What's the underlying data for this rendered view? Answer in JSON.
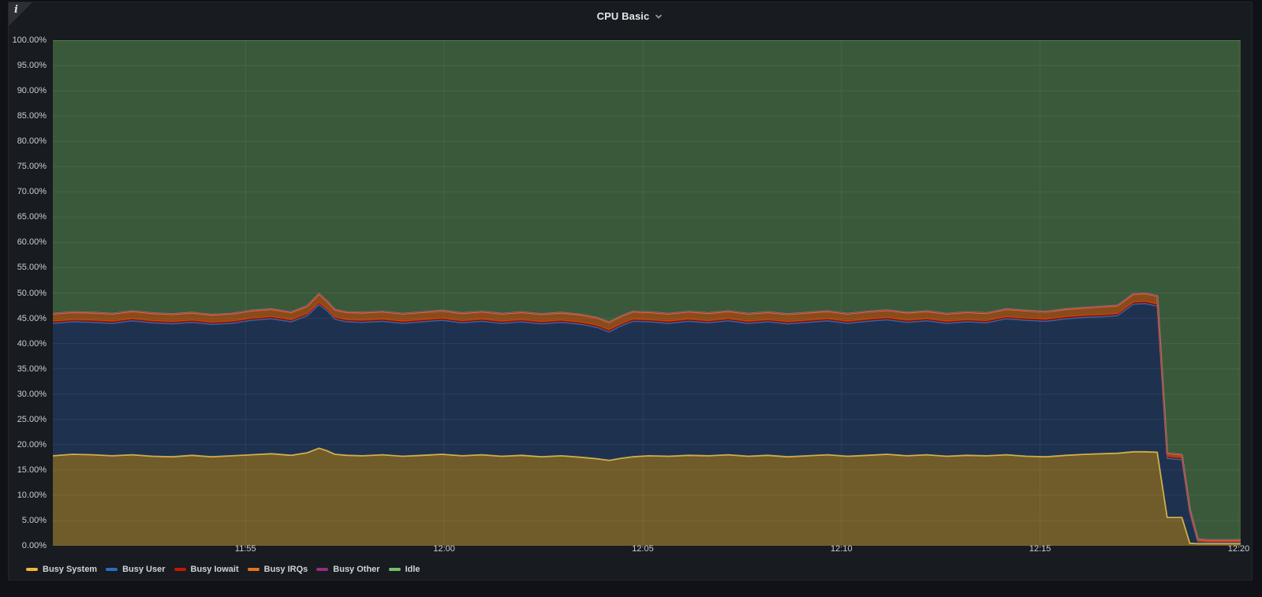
{
  "panel": {
    "title": "CPU Basic",
    "info_icon": "i"
  },
  "chart_data": {
    "type": "area",
    "stacked": true,
    "unit": "percent",
    "title": "CPU Basic",
    "grid": true,
    "legend_position": "bottom",
    "ylim": [
      0,
      100
    ],
    "x_domain": [
      0,
      29.9
    ],
    "x_ticks": [
      {
        "t": 4.85,
        "label": "11:55"
      },
      {
        "t": 9.85,
        "label": "12:00"
      },
      {
        "t": 14.85,
        "label": "12:05"
      },
      {
        "t": 19.85,
        "label": "12:10"
      },
      {
        "t": 24.85,
        "label": "12:15"
      },
      {
        "t": 29.85,
        "label": "12:20"
      }
    ],
    "y_ticks": [
      {
        "v": 100,
        "label": "100.00%"
      },
      {
        "v": 95,
        "label": "95.00%"
      },
      {
        "v": 90,
        "label": "90.00%"
      },
      {
        "v": 85,
        "label": "85.00%"
      },
      {
        "v": 80,
        "label": "80.00%"
      },
      {
        "v": 75,
        "label": "75.00%"
      },
      {
        "v": 70,
        "label": "70.00%"
      },
      {
        "v": 65,
        "label": "65.00%"
      },
      {
        "v": 60,
        "label": "60.00%"
      },
      {
        "v": 55,
        "label": "55.00%"
      },
      {
        "v": 50,
        "label": "50.00%"
      },
      {
        "v": 45,
        "label": "45.00%"
      },
      {
        "v": 40,
        "label": "40.00%"
      },
      {
        "v": 35,
        "label": "35.00%"
      },
      {
        "v": 30,
        "label": "30.00%"
      },
      {
        "v": 25,
        "label": "25.00%"
      },
      {
        "v": 20,
        "label": "20.00%"
      },
      {
        "v": 15,
        "label": "15.00%"
      },
      {
        "v": 10,
        "label": "10.00%"
      },
      {
        "v": 5,
        "label": "5.00%"
      },
      {
        "v": 0,
        "label": "0.00%"
      }
    ],
    "x_minutes": [
      0,
      0.5,
      1,
      1.5,
      2,
      2.5,
      3,
      3.5,
      4,
      4.5,
      5,
      5.5,
      6,
      6.4,
      6.7,
      6.9,
      7.1,
      7.4,
      7.8,
      8.3,
      8.8,
      9.3,
      9.8,
      10.3,
      10.8,
      11.3,
      11.8,
      12.3,
      12.8,
      13.3,
      13.7,
      14.0,
      14.3,
      14.6,
      15.0,
      15.5,
      16.0,
      16.5,
      17.0,
      17.5,
      18.0,
      18.5,
      19.0,
      19.5,
      20.0,
      20.5,
      21.0,
      21.5,
      22.0,
      22.5,
      23.0,
      23.5,
      24.0,
      24.5,
      25.0,
      25.5,
      26.0,
      26.4,
      26.8,
      27.2,
      27.5,
      27.8,
      28.05,
      28.42,
      28.62,
      28.82,
      29.1,
      29.5,
      29.9
    ],
    "series": [
      {
        "name": "Busy System",
        "color": "#EAB839",
        "fill_opacity": 0.42,
        "line_width": 1.8,
        "values": [
          17.8,
          18.1,
          18.0,
          17.8,
          18.0,
          17.7,
          17.6,
          17.9,
          17.6,
          17.8,
          18.0,
          18.2,
          17.9,
          18.4,
          19.3,
          18.8,
          18.1,
          17.9,
          17.8,
          18.0,
          17.7,
          17.9,
          18.1,
          17.8,
          18.0,
          17.7,
          17.9,
          17.6,
          17.8,
          17.5,
          17.2,
          16.9,
          17.3,
          17.6,
          17.8,
          17.7,
          17.9,
          17.8,
          18.0,
          17.7,
          17.9,
          17.6,
          17.8,
          18.0,
          17.7,
          17.9,
          18.1,
          17.8,
          18.0,
          17.7,
          17.9,
          17.8,
          18.0,
          17.7,
          17.6,
          17.9,
          18.1,
          18.2,
          18.3,
          18.6,
          18.6,
          18.5,
          5.6,
          5.6,
          0.5,
          0.4,
          0.4,
          0.4,
          0.4
        ]
      },
      {
        "name": "Busy User",
        "color": "#2E6BC0",
        "fill_opacity": 0.3,
        "line_width": 1.5,
        "values": [
          26.2,
          26.2,
          26.2,
          26.2,
          26.5,
          26.4,
          26.3,
          26.3,
          26.2,
          26.2,
          26.6,
          26.7,
          26.4,
          27.1,
          28.4,
          27.7,
          26.7,
          26.4,
          26.4,
          26.4,
          26.3,
          26.4,
          26.5,
          26.3,
          26.4,
          26.3,
          26.4,
          26.3,
          26.4,
          26.3,
          26.0,
          25.4,
          26.2,
          26.8,
          26.5,
          26.3,
          26.5,
          26.3,
          26.5,
          26.3,
          26.4,
          26.3,
          26.4,
          26.5,
          26.3,
          26.5,
          26.6,
          26.4,
          26.5,
          26.3,
          26.4,
          26.3,
          26.9,
          26.9,
          26.8,
          27.0,
          27.1,
          27.1,
          27.2,
          29.2,
          29.3,
          28.9,
          11.7,
          11.4,
          6.0,
          0.4,
          0.3,
          0.3,
          0.3
        ]
      },
      {
        "name": "Busy Iowait",
        "color": "#BF1B00",
        "fill_opacity": 0.4,
        "line_width": 1.5,
        "values": [
          0.4,
          0.4,
          0.4,
          0.4,
          0.4,
          0.4,
          0.4,
          0.4,
          0.4,
          0.4,
          0.4,
          0.4,
          0.4,
          0.4,
          0.4,
          0.4,
          0.4,
          0.4,
          0.4,
          0.4,
          0.4,
          0.4,
          0.4,
          0.4,
          0.4,
          0.4,
          0.4,
          0.4,
          0.4,
          0.4,
          0.4,
          0.4,
          0.4,
          0.4,
          0.4,
          0.4,
          0.4,
          0.4,
          0.4,
          0.4,
          0.4,
          0.4,
          0.4,
          0.4,
          0.4,
          0.4,
          0.4,
          0.4,
          0.4,
          0.4,
          0.4,
          0.4,
          0.4,
          0.4,
          0.4,
          0.4,
          0.4,
          0.4,
          0.4,
          0.4,
          0.4,
          0.4,
          0.4,
          0.4,
          0.3,
          0.2,
          0.1,
          0.1,
          0.1
        ]
      },
      {
        "name": "Busy IRQs",
        "color": "#E8731A",
        "fill_opacity": 0.55,
        "line_width": 2.2,
        "values": [
          1.5,
          1.5,
          1.5,
          1.5,
          1.5,
          1.5,
          1.5,
          1.5,
          1.5,
          1.5,
          1.5,
          1.5,
          1.5,
          1.5,
          1.7,
          1.5,
          1.5,
          1.5,
          1.5,
          1.5,
          1.5,
          1.5,
          1.5,
          1.5,
          1.5,
          1.5,
          1.5,
          1.5,
          1.5,
          1.5,
          1.5,
          1.5,
          1.5,
          1.5,
          1.5,
          1.5,
          1.5,
          1.5,
          1.5,
          1.5,
          1.5,
          1.5,
          1.5,
          1.5,
          1.5,
          1.5,
          1.5,
          1.5,
          1.5,
          1.5,
          1.5,
          1.5,
          1.5,
          1.5,
          1.5,
          1.5,
          1.5,
          1.6,
          1.6,
          1.6,
          1.6,
          1.6,
          0.6,
          0.6,
          0.4,
          0.3,
          0.3,
          0.3,
          0.3
        ]
      },
      {
        "name": "Busy Other",
        "color": "#962D82",
        "fill_opacity": 0.4,
        "line_width": 1.2,
        "values": [
          0.05,
          0.05,
          0.05,
          0.05,
          0.05,
          0.05,
          0.05,
          0.05,
          0.05,
          0.05,
          0.05,
          0.05,
          0.05,
          0.05,
          0.05,
          0.05,
          0.05,
          0.05,
          0.05,
          0.05,
          0.05,
          0.05,
          0.05,
          0.05,
          0.05,
          0.05,
          0.05,
          0.05,
          0.05,
          0.05,
          0.05,
          0.05,
          0.05,
          0.05,
          0.05,
          0.05,
          0.05,
          0.05,
          0.05,
          0.05,
          0.05,
          0.05,
          0.05,
          0.05,
          0.05,
          0.05,
          0.05,
          0.05,
          0.05,
          0.05,
          0.05,
          0.05,
          0.05,
          0.05,
          0.05,
          0.05,
          0.05,
          0.05,
          0.05,
          0.05,
          0.05,
          0.05,
          0.05,
          0.05,
          0.05,
          0.05,
          0.05,
          0.05,
          0.05
        ]
      },
      {
        "name": "Idle",
        "color": "#73BF69",
        "fill_opacity": 0.38,
        "line_width": 1.3,
        "values": [
          54.1,
          53.8,
          53.9,
          54.1,
          53.6,
          54.0,
          54.2,
          53.9,
          54.3,
          54.1,
          53.5,
          53.2,
          53.8,
          52.6,
          50.2,
          51.6,
          53.3,
          53.8,
          53.9,
          53.7,
          54.1,
          53.8,
          53.5,
          54.0,
          53.7,
          54.1,
          53.8,
          54.2,
          53.9,
          54.3,
          54.9,
          55.8,
          54.6,
          53.7,
          53.8,
          54.1,
          53.7,
          54.0,
          53.6,
          54.1,
          53.8,
          54.2,
          53.9,
          53.6,
          54.1,
          53.7,
          53.4,
          53.9,
          53.6,
          54.1,
          53.8,
          54.0,
          53.2,
          53.5,
          53.7,
          53.2,
          52.9,
          52.7,
          52.5,
          50.2,
          50.1,
          50.6,
          81.7,
          82.0,
          92.8,
          98.7,
          98.9,
          98.9,
          98.9
        ]
      }
    ]
  }
}
